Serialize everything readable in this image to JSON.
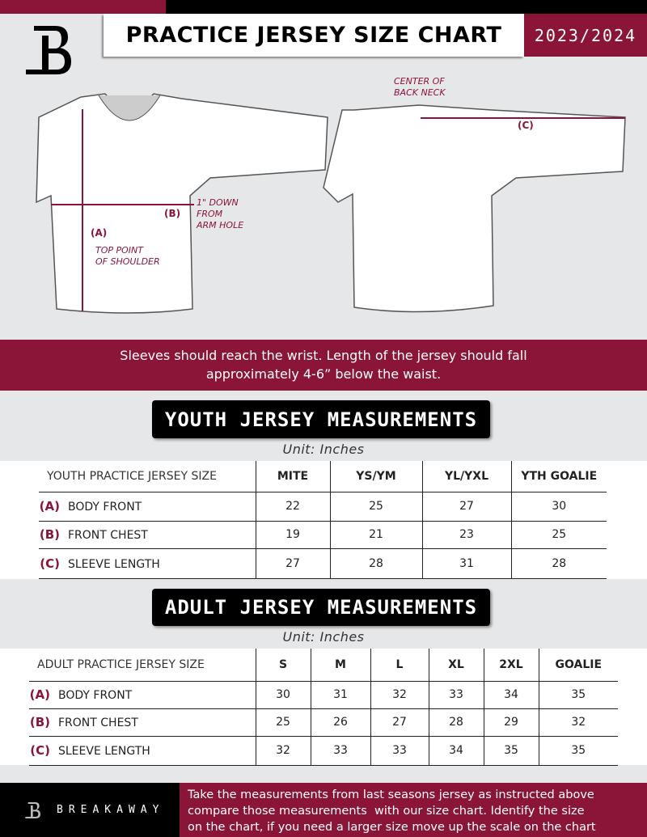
{
  "header": {
    "title": "PRACTICE JERSEY SIZE CHART",
    "season": "2023/2024",
    "logo_letter": "B"
  },
  "diagram": {
    "center_back_neck": [
      "CENTER OF",
      "BACK NECK"
    ],
    "label_a": "(A)",
    "label_b": "(B)",
    "label_c": "(C)",
    "top_point": [
      "TOP POINT",
      "OF SHOULDER"
    ],
    "down_from": [
      "1\" DOWN",
      "FROM",
      "ARM HOLE"
    ]
  },
  "instructions": [
    "Sleeves should reach the wrist. Length of the jersey should fall",
    "approximately 4-6” below the waist."
  ],
  "youth": {
    "title": "YOUTH JERSEY MEASUREMENTS",
    "unit": "Unit: Inches",
    "header": [
      "YOUTH PRACTICE JERSEY SIZE",
      "MITE",
      "YS/YM",
      "YL/YXL",
      "YTH GOALIE"
    ],
    "rows": [
      {
        "code": "(A)",
        "label": "BODY FRONT",
        "values": [
          "22",
          "25",
          "27",
          "30"
        ]
      },
      {
        "code": "(B)",
        "label": "FRONT CHEST",
        "values": [
          "19",
          "21",
          "23",
          "25"
        ]
      },
      {
        "code": "(C)",
        "label": "SLEEVE LENGTH",
        "values": [
          "27",
          "28",
          "31",
          "28"
        ]
      }
    ]
  },
  "adult": {
    "title": "ADULT JERSEY MEASUREMENTS",
    "unit": "Unit: Inches",
    "header": [
      "ADULT PRACTICE JERSEY SIZE",
      "S",
      "M",
      "L",
      "XL",
      "2XL",
      "GOALIE"
    ],
    "rows": [
      {
        "code": "(A)",
        "label": "BODY FRONT",
        "values": [
          "30",
          "31",
          "32",
          "33",
          "34",
          "35"
        ]
      },
      {
        "code": "(B)",
        "label": "FRONT CHEST",
        "values": [
          "25",
          "26",
          "27",
          "28",
          "29",
          "32"
        ]
      },
      {
        "code": "(C)",
        "label": "SLEEVE LENGTH",
        "values": [
          "32",
          "33",
          "33",
          "34",
          "35",
          "35"
        ]
      }
    ]
  },
  "footer": {
    "brand": "BREAKAWAY",
    "text": [
      "Take the measurements from last seasons jersey as instructed above",
      "compare those measurements  with our size chart. Identify the size",
      "on the chart, if you need a larger size move up the scale on the chart"
    ]
  },
  "colors": {
    "maroon": "#8a1538",
    "black": "#000000",
    "gray": "#e6e7e8"
  }
}
